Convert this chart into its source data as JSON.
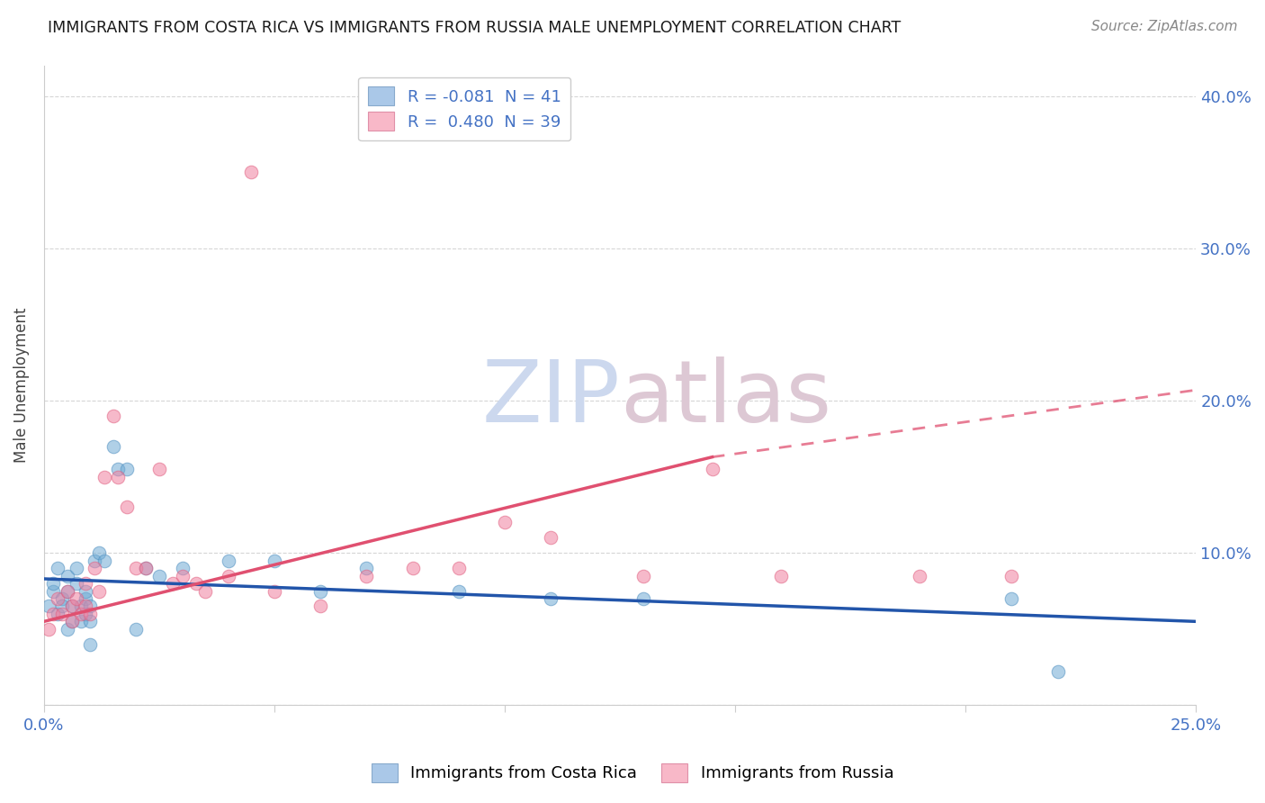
{
  "title": "IMMIGRANTS FROM COSTA RICA VS IMMIGRANTS FROM RUSSIA MALE UNEMPLOYMENT CORRELATION CHART",
  "source": "Source: ZipAtlas.com",
  "ylabel": "Male Unemployment",
  "xlim": [
    0.0,
    0.25
  ],
  "ylim": [
    0.0,
    0.42
  ],
  "series1_name": "Immigrants from Costa Rica",
  "series2_name": "Immigrants from Russia",
  "series1_color": "#6faad4",
  "series2_color": "#f080a0",
  "series1_edge": "#5090c0",
  "series2_edge": "#e06080",
  "legend1_patch_face": "#aac8e8",
  "legend1_patch_edge": "#88aacc",
  "legend2_patch_face": "#f8b8c8",
  "legend2_patch_edge": "#e090a8",
  "trendline1_color": "#2255aa",
  "trendline2_color": "#e05070",
  "R_label_color": "#4472c4",
  "N_label_color": "#4472c4",
  "tick_color": "#4472c4",
  "grid_color": "#cccccc",
  "background_color": "#ffffff",
  "watermark_zip_color": "#ccd8ee",
  "watermark_atlas_color": "#ddc8d4",
  "scatter1_x": [
    0.001,
    0.002,
    0.002,
    0.003,
    0.003,
    0.004,
    0.004,
    0.005,
    0.005,
    0.005,
    0.006,
    0.006,
    0.007,
    0.007,
    0.008,
    0.008,
    0.009,
    0.009,
    0.009,
    0.01,
    0.01,
    0.01,
    0.011,
    0.012,
    0.013,
    0.015,
    0.016,
    0.018,
    0.02,
    0.022,
    0.025,
    0.03,
    0.04,
    0.05,
    0.06,
    0.07,
    0.09,
    0.11,
    0.13,
    0.21,
    0.22
  ],
  "scatter1_y": [
    0.065,
    0.075,
    0.08,
    0.06,
    0.09,
    0.07,
    0.065,
    0.05,
    0.075,
    0.085,
    0.055,
    0.065,
    0.08,
    0.09,
    0.055,
    0.065,
    0.07,
    0.075,
    0.06,
    0.04,
    0.055,
    0.065,
    0.095,
    0.1,
    0.095,
    0.17,
    0.155,
    0.155,
    0.05,
    0.09,
    0.085,
    0.09,
    0.095,
    0.095,
    0.075,
    0.09,
    0.075,
    0.07,
    0.07,
    0.07,
    0.022
  ],
  "scatter2_x": [
    0.001,
    0.002,
    0.003,
    0.004,
    0.005,
    0.006,
    0.006,
    0.007,
    0.008,
    0.009,
    0.009,
    0.01,
    0.011,
    0.012,
    0.013,
    0.015,
    0.016,
    0.018,
    0.02,
    0.022,
    0.025,
    0.028,
    0.03,
    0.033,
    0.035,
    0.04,
    0.045,
    0.05,
    0.06,
    0.07,
    0.08,
    0.09,
    0.1,
    0.11,
    0.13,
    0.145,
    0.16,
    0.19,
    0.21
  ],
  "scatter2_y": [
    0.05,
    0.06,
    0.07,
    0.06,
    0.075,
    0.065,
    0.055,
    0.07,
    0.06,
    0.08,
    0.065,
    0.06,
    0.09,
    0.075,
    0.15,
    0.19,
    0.15,
    0.13,
    0.09,
    0.09,
    0.155,
    0.08,
    0.085,
    0.08,
    0.075,
    0.085,
    0.35,
    0.075,
    0.065,
    0.085,
    0.09,
    0.09,
    0.12,
    0.11,
    0.085,
    0.155,
    0.085,
    0.085,
    0.085
  ],
  "trend1_x0": 0.0,
  "trend1_y0": 0.083,
  "trend1_x1": 0.25,
  "trend1_y1": 0.055,
  "trend2_x0": 0.0,
  "trend2_y0": 0.055,
  "trend2_solid_x1": 0.145,
  "trend2_solid_y1": 0.163,
  "trend2_dash_x1": 0.25,
  "trend2_dash_y1": 0.207
}
